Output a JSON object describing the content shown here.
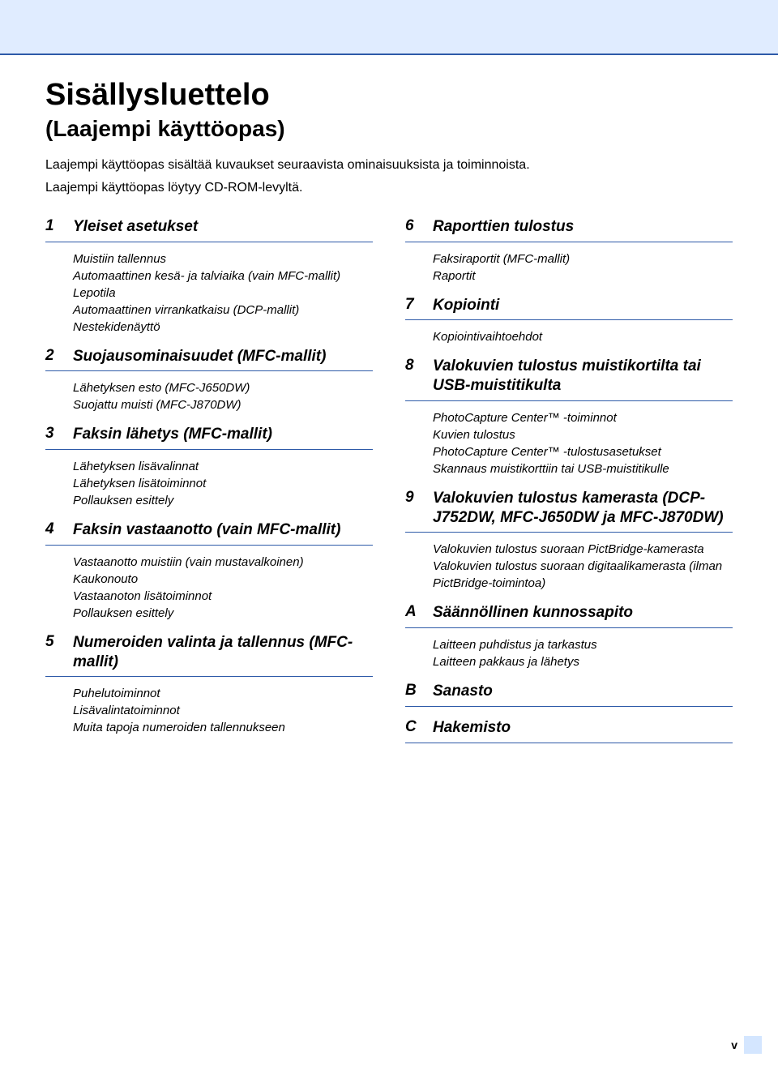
{
  "colors": {
    "topband_bg": "#e0ecff",
    "rule": "#2e5aa8",
    "text": "#000000",
    "footer_block": "#d4e6ff"
  },
  "header": {
    "title": "Sisällysluettelo",
    "subtitle": "(Laajempi käyttöopas)",
    "intro1": "Laajempi käyttöopas sisältää kuvaukset seuraavista ominaisuuksista ja toiminnoista.",
    "intro2": "Laajempi käyttöopas löytyy CD-ROM-levyltä."
  },
  "left": [
    {
      "num": "1",
      "title": "Yleiset asetukset",
      "items": [
        "Muistiin tallennus",
        "Automaattinen kesä- ja talviaika (vain MFC-mallit)",
        "Lepotila",
        "Automaattinen virrankatkaisu (DCP-mallit)",
        "Nestekidenäyttö"
      ]
    },
    {
      "num": "2",
      "title": "Suojausominaisuudet (MFC-mallit)",
      "items": [
        "Lähetyksen esto (MFC-J650DW)",
        "Suojattu muisti (MFC-J870DW)"
      ]
    },
    {
      "num": "3",
      "title": "Faksin lähetys (MFC-mallit)",
      "items": [
        "Lähetyksen lisävalinnat",
        "Lähetyksen lisätoiminnot",
        "Pollauksen esittely"
      ]
    },
    {
      "num": "4",
      "title": "Faksin vastaanotto (vain MFC-mallit)",
      "items": [
        "Vastaanotto muistiin (vain mustavalkoinen)",
        "Kaukonouto",
        "Vastaanoton lisätoiminnot",
        "Pollauksen esittely"
      ]
    },
    {
      "num": "5",
      "title": "Numeroiden valinta ja tallennus (MFC-mallit)",
      "items": [
        "Puhelutoiminnot",
        "Lisävalintatoiminnot",
        "Muita tapoja numeroiden tallennukseen"
      ]
    }
  ],
  "right": [
    {
      "num": "6",
      "title": "Raporttien tulostus",
      "items": [
        "Faksiraportit (MFC-mallit)",
        "Raportit"
      ]
    },
    {
      "num": "7",
      "title": "Kopiointi",
      "items": [
        "Kopiointivaihtoehdot"
      ]
    },
    {
      "num": "8",
      "title": "Valokuvien tulostus muistikortilta tai USB-muistitikulta",
      "items": [
        "PhotoCapture Center™ -toiminnot",
        "Kuvien tulostus",
        "PhotoCapture Center™ -tulostusasetukset",
        "Skannaus muistikorttiin tai USB-muistitikulle"
      ]
    },
    {
      "num": "9",
      "title": "Valokuvien tulostus kamerasta (DCP-J752DW, MFC-J650DW ja MFC-J870DW)",
      "items": [
        "Valokuvien tulostus suoraan PictBridge-kamerasta",
        "Valokuvien tulostus suoraan digitaalikamerasta (ilman PictBridge-toimintoa)"
      ]
    },
    {
      "num": "A",
      "title": "Säännöllinen kunnossapito",
      "items": [
        "Laitteen puhdistus ja tarkastus",
        "Laitteen pakkaus ja lähetys"
      ]
    },
    {
      "num": "B",
      "title": "Sanasto",
      "items": []
    },
    {
      "num": "C",
      "title": "Hakemisto",
      "items": []
    }
  ],
  "footer": {
    "page": "v"
  }
}
